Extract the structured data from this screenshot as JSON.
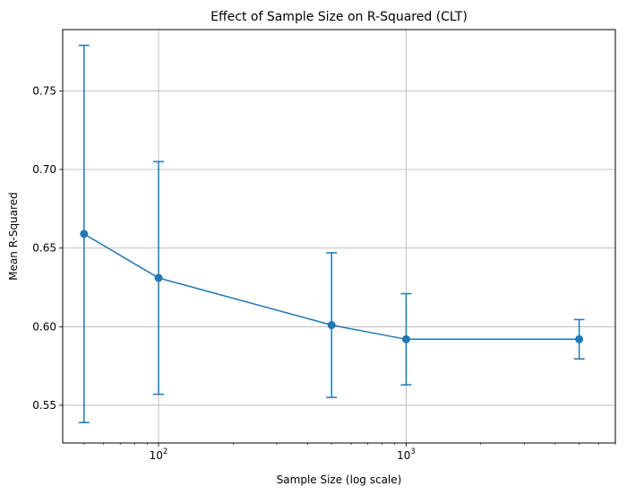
{
  "chart_data": {
    "type": "line",
    "title": "Effect of Sample Size on R-Squared (CLT)",
    "xlabel": "Sample Size (log scale)",
    "ylabel": "Mean R-Squared",
    "x_scale": "log",
    "xlim": [
      41,
      7000
    ],
    "ylim": [
      0.526,
      0.789
    ],
    "grid": true,
    "series": [
      {
        "x": [
          50,
          100,
          500,
          1000,
          5000
        ],
        "y": [
          0.659,
          0.631,
          0.601,
          0.592,
          0.592
        ],
        "error": [
          0.12,
          0.074,
          0.046,
          0.029,
          0.0125
        ],
        "color": "#1f77b4",
        "marker": "circle",
        "error_bars": true
      }
    ],
    "y_ticks": [
      0.55,
      0.6,
      0.65,
      0.7,
      0.75
    ],
    "y_tick_labels": [
      "0.55",
      "0.60",
      "0.65",
      "0.70",
      "0.75"
    ],
    "x_ticks": [
      {
        "value": 100,
        "base": "10",
        "exp": "2"
      },
      {
        "value": 1000,
        "base": "10",
        "exp": "3"
      }
    ]
  }
}
